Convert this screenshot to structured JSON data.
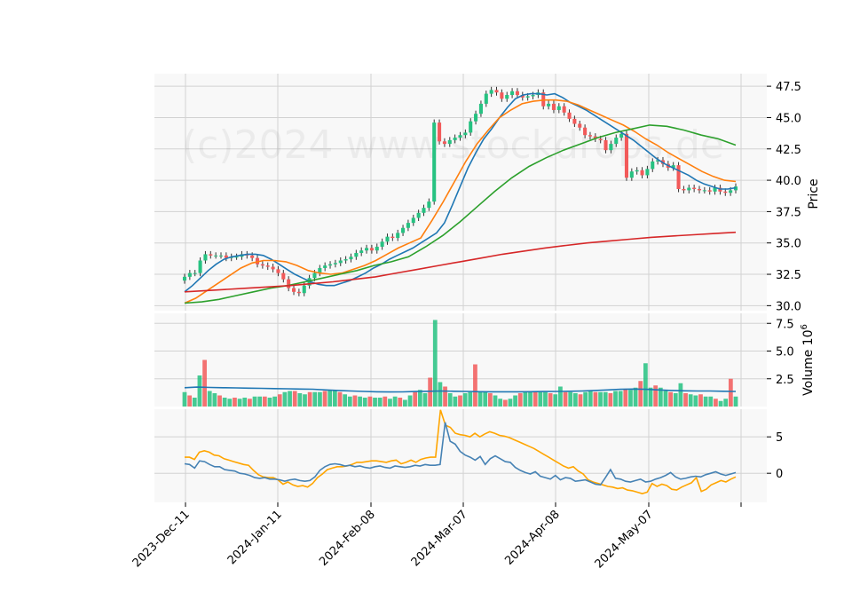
{
  "chart_data": {
    "type": "candlestick",
    "watermark": "(c)2024 www.stockdrops.de",
    "x_ticks": [
      "2023-Dec-11",
      "2024-Jan-11",
      "2024-Feb-08",
      "2024-Mar-07",
      "2024-Apr-08",
      "2024-May-07"
    ],
    "price_panel": {
      "ylabel": "Price",
      "ylim": [
        29.6,
        48.5
      ],
      "y_ticks": [
        "30.0",
        "32.5",
        "35.0",
        "37.5",
        "40.0",
        "42.5",
        "45.0",
        "47.5"
      ],
      "closes": [
        32.3,
        32.6,
        32.6,
        33.6,
        34.1,
        34.0,
        34.0,
        34.0,
        33.8,
        33.9,
        33.9,
        34.1,
        34.0,
        33.8,
        33.3,
        33.2,
        33.1,
        32.9,
        32.6,
        32.1,
        31.4,
        31.1,
        31.0,
        31.6,
        32.2,
        32.6,
        33.0,
        33.2,
        33.3,
        33.4,
        33.6,
        33.7,
        33.9,
        34.2,
        34.4,
        34.6,
        34.4,
        34.7,
        35.1,
        35.5,
        35.4,
        35.8,
        36.2,
        36.6,
        37.0,
        37.4,
        37.8,
        38.3,
        44.6,
        43.1,
        42.9,
        43.2,
        43.4,
        43.6,
        43.8,
        44.7,
        45.3,
        46.1,
        46.9,
        47.2,
        47.0,
        46.5,
        46.8,
        47.1,
        46.8,
        46.6,
        46.7,
        46.8,
        47.0,
        45.9,
        46.1,
        45.6,
        45.9,
        45.4,
        44.9,
        44.5,
        44.2,
        43.6,
        43.5,
        43.3,
        43.2,
        42.4,
        42.9,
        43.4,
        43.7,
        40.2,
        40.7,
        40.8,
        40.4,
        40.9,
        41.5,
        41.6,
        41.3,
        41.0,
        41.2,
        39.3,
        39.2,
        39.4,
        39.3,
        39.2,
        39.2,
        39.1,
        39.4,
        39.1,
        39.0,
        39.2,
        39.5
      ],
      "moving_averages": [
        {
          "color": "#1f77b4",
          "values": [
            31.1,
            31.6,
            32.2,
            32.8,
            33.3,
            33.7,
            33.9,
            34.0,
            34.1,
            34.1,
            34.0,
            33.7,
            33.3,
            32.9,
            32.5,
            32.2,
            31.9,
            31.7,
            31.6,
            31.6,
            31.8,
            32.0,
            32.3,
            32.6,
            33.0,
            33.3,
            33.7,
            34.0,
            34.3,
            34.6,
            35.0,
            35.4,
            35.8,
            36.6,
            38.0,
            39.5,
            41.0,
            42.2,
            43.3,
            44.1,
            45.0,
            45.8,
            46.5,
            46.8,
            46.9,
            46.9,
            46.8,
            46.9,
            46.6,
            46.2,
            45.9,
            45.6,
            45.2,
            44.8,
            44.4,
            44.0,
            43.6,
            43.2,
            42.7,
            42.2,
            41.7,
            41.3,
            41.0,
            40.7,
            40.4,
            40.0,
            39.7,
            39.5,
            39.3,
            39.3,
            39.4
          ]
        },
        {
          "color": "#ff7f0e",
          "values": [
            30.2,
            30.6,
            31.2,
            31.8,
            32.4,
            33.0,
            33.4,
            33.6,
            33.6,
            33.5,
            33.2,
            32.8,
            32.6,
            32.5,
            32.6,
            32.9,
            33.2,
            33.6,
            34.1,
            34.6,
            35.0,
            35.4,
            36.8,
            38.3,
            39.9,
            41.5,
            42.9,
            44.0,
            45.0,
            45.6,
            46.1,
            46.3,
            46.4,
            46.4,
            46.3,
            46.0,
            45.6,
            45.2,
            44.8,
            44.4,
            43.9,
            43.3,
            42.8,
            42.2,
            41.7,
            41.2,
            40.7,
            40.3,
            40.0,
            39.9
          ]
        },
        {
          "color": "#2ca02c",
          "values": [
            30.2,
            30.3,
            30.5,
            30.8,
            31.1,
            31.4,
            31.6,
            31.9,
            32.2,
            32.5,
            32.8,
            33.2,
            33.5,
            33.9,
            34.7,
            35.6,
            36.7,
            37.9,
            39.1,
            40.2,
            41.1,
            41.8,
            42.4,
            42.9,
            43.4,
            43.8,
            44.1,
            44.4,
            44.3,
            44.0,
            43.6,
            43.3,
            42.8
          ]
        },
        {
          "color": "#d62728",
          "values": [
            31.1,
            31.2,
            31.3,
            31.4,
            31.5,
            31.6,
            31.75,
            31.9,
            32.1,
            32.3,
            32.6,
            32.9,
            33.2,
            33.5,
            33.8,
            34.1,
            34.35,
            34.6,
            34.8,
            35.0,
            35.15,
            35.3,
            35.45,
            35.55,
            35.65,
            35.75,
            35.85
          ]
        }
      ]
    },
    "volume_panel": {
      "ylabel": "Volume  10",
      "ylabel_exponent": "6",
      "ylim": [
        0,
        8.4
      ],
      "y_ticks": [
        "2.5",
        "5.0",
        "7.5"
      ],
      "values": [
        1.3,
        1.0,
        0.8,
        2.8,
        4.2,
        1.4,
        1.2,
        1.0,
        0.8,
        0.7,
        0.8,
        0.7,
        0.8,
        0.7,
        0.9,
        0.9,
        0.9,
        0.8,
        0.9,
        1.1,
        1.3,
        1.4,
        1.4,
        1.2,
        1.1,
        1.3,
        1.3,
        1.3,
        1.4,
        1.5,
        1.4,
        1.3,
        1.1,
        0.9,
        1.0,
        0.9,
        0.8,
        0.9,
        0.8,
        0.8,
        0.9,
        0.7,
        0.9,
        0.8,
        0.6,
        1.0,
        1.3,
        1.5,
        1.2,
        2.6,
        7.8,
        2.2,
        1.8,
        1.2,
        0.9,
        1.0,
        1.2,
        1.3,
        3.8,
        1.4,
        1.3,
        1.2,
        1.0,
        0.7,
        0.6,
        0.7,
        1.0,
        1.2,
        1.3,
        1.4,
        1.4,
        1.3,
        1.3,
        1.2,
        1.1,
        1.8,
        1.3,
        1.3,
        1.2,
        1.1,
        1.3,
        1.4,
        1.3,
        1.3,
        1.3,
        1.2,
        1.4,
        1.4,
        1.6,
        1.5,
        1.7,
        2.3,
        3.9,
        1.7,
        1.9,
        1.7,
        1.4,
        1.3,
        1.2,
        2.1,
        1.2,
        1.1,
        1.0,
        1.1,
        0.9,
        0.9,
        0.7,
        0.5,
        0.7,
        2.5,
        0.9
      ],
      "ma_color": "#1f77b4",
      "ma_values": [
        1.7,
        1.75,
        1.72,
        1.7,
        1.68,
        1.66,
        1.64,
        1.62,
        1.6,
        1.58,
        1.56,
        1.5,
        1.45,
        1.4,
        1.36,
        1.33,
        1.31,
        1.32,
        1.35,
        1.38,
        1.4,
        1.38,
        1.36,
        1.34,
        1.33,
        1.33,
        1.33,
        1.34,
        1.35,
        1.36,
        1.38,
        1.4,
        1.45,
        1.5,
        1.55,
        1.58,
        1.55,
        1.5,
        1.45,
        1.42,
        1.4,
        1.4,
        1.38,
        1.36
      ]
    },
    "indicator_panel": {
      "y_ticks": [
        "0",
        "5"
      ],
      "ylim": [
        -4.0,
        8.8
      ],
      "series": [
        {
          "color": "#ffa500",
          "values": [
            2.2,
            2.2,
            1.9,
            2.9,
            3.1,
            2.9,
            2.5,
            2.4,
            2.0,
            1.8,
            1.6,
            1.4,
            1.2,
            1.1,
            0.4,
            -0.2,
            -0.5,
            -0.6,
            -0.6,
            -0.9,
            -1.5,
            -1.2,
            -1.6,
            -1.8,
            -1.7,
            -1.9,
            -1.4,
            -0.6,
            -0.1,
            0.5,
            0.7,
            0.9,
            0.9,
            1.0,
            1.2,
            1.5,
            1.5,
            1.6,
            1.7,
            1.7,
            1.6,
            1.5,
            1.7,
            1.8,
            1.3,
            1.5,
            1.8,
            1.5,
            1.9,
            2.1,
            2.2,
            2.2,
            8.7,
            6.6,
            6.3,
            5.5,
            5.3,
            5.2,
            5.0,
            5.5,
            5.0,
            5.4,
            5.7,
            5.5,
            5.2,
            5.1,
            4.9,
            4.6,
            4.3,
            4.0,
            3.7,
            3.4,
            3.0,
            2.6,
            2.2,
            1.8,
            1.4,
            1.0,
            0.7,
            0.9,
            0.3,
            -0.1,
            -0.9,
            -1.2,
            -1.4,
            -1.6,
            -1.8,
            -1.9,
            -2.1,
            -2.0,
            -2.3,
            -2.4,
            -2.6,
            -2.8,
            -2.6,
            -1.4,
            -1.8,
            -1.5,
            -1.7,
            -2.2,
            -2.3,
            -1.9,
            -1.6,
            -1.3,
            -0.6,
            -2.5,
            -2.2,
            -1.6,
            -1.3,
            -1.0,
            -1.2,
            -0.8,
            -0.5
          ]
        },
        {
          "color": "#4682b4",
          "values": [
            1.3,
            1.2,
            0.7,
            1.7,
            1.6,
            1.2,
            0.9,
            0.9,
            0.5,
            0.4,
            0.3,
            0.0,
            -0.1,
            -0.3,
            -0.6,
            -0.7,
            -0.6,
            -0.8,
            -0.8,
            -0.9,
            -1.1,
            -0.9,
            -0.8,
            -1.0,
            -1.1,
            -1.0,
            -0.5,
            0.4,
            0.9,
            1.2,
            1.3,
            1.2,
            1.0,
            1.1,
            0.9,
            1.0,
            0.8,
            0.7,
            0.9,
            1.0,
            0.8,
            0.7,
            1.0,
            0.9,
            0.8,
            0.9,
            1.1,
            1.0,
            1.2,
            1.1,
            1.1,
            1.2,
            7.0,
            4.4,
            4.0,
            3.0,
            2.5,
            2.2,
            1.8,
            2.3,
            1.2,
            2.0,
            2.4,
            2.0,
            1.6,
            1.5,
            0.8,
            0.4,
            0.1,
            -0.1,
            0.2,
            -0.4,
            -0.6,
            -0.8,
            -0.3,
            -0.9,
            -0.6,
            -0.7,
            -1.1,
            -1.0,
            -0.9,
            -1.2,
            -1.5,
            -1.6,
            -0.6,
            0.5,
            -0.7,
            -0.8,
            -1.1,
            -1.2,
            -1.0,
            -0.8,
            -1.2,
            -1.1,
            -0.8,
            -0.6,
            -0.3,
            0.1,
            -0.5,
            -0.8,
            -0.7,
            -0.5,
            -0.4,
            -0.5,
            -0.2,
            0.0,
            0.2,
            -0.1,
            -0.3,
            -0.1,
            0.1
          ]
        }
      ]
    }
  }
}
